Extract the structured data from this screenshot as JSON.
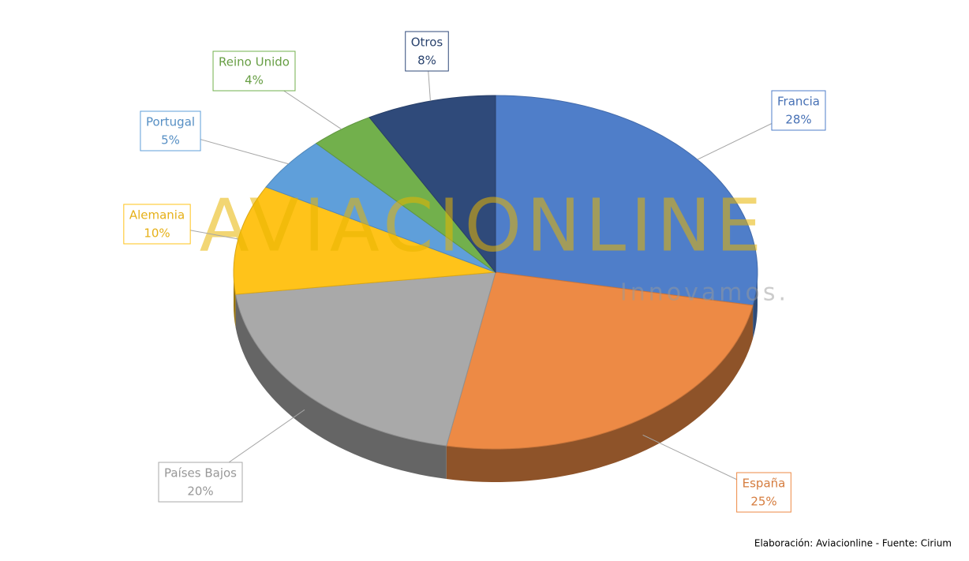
{
  "chart_data": {
    "type": "pie",
    "categories": [
      "Francia",
      "España",
      "Países Bajos",
      "Alemania",
      "Portugal",
      "Reino Unido",
      "Otros"
    ],
    "values": [
      28,
      25,
      20,
      10,
      5,
      4,
      8
    ],
    "value_labels": [
      "28%",
      "25%",
      "20%",
      "10%",
      "5%",
      "4%",
      "8%"
    ],
    "colors": [
      "#4f7ec9",
      "#ed8a45",
      "#a9a9a9",
      "#ffc31a",
      "#5f9fda",
      "#72b04c",
      "#2f4a7a"
    ],
    "watermark": {
      "text": "AVIACIONLINE",
      "tagline": "Innovamos."
    },
    "source": "Elaboración: Aviacionline - Fuente: Cirium"
  }
}
